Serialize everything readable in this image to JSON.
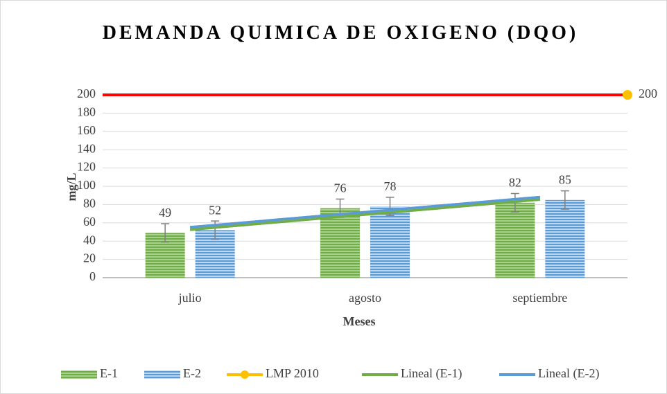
{
  "chart_data": {
    "type": "bar",
    "title": "DEMANDA QUIMICA DE OXIGENO (DQO)",
    "x_label": "Meses",
    "y_label": "mg/L",
    "categories": [
      "julio",
      "agosto",
      "septiembre"
    ],
    "series": [
      {
        "name": "E-1",
        "type": "bar",
        "color": "#70ad47",
        "values": [
          49,
          76,
          82
        ],
        "errors": [
          10,
          10,
          10
        ]
      },
      {
        "name": "E-2",
        "type": "bar",
        "color": "#5b9bd5",
        "values": [
          52,
          78,
          85
        ],
        "errors": [
          10,
          10,
          10
        ]
      },
      {
        "name": "LMP 2010",
        "type": "limit",
        "color": "#ffc000",
        "line_color": "#ff0000",
        "values": [
          200,
          200,
          200
        ]
      },
      {
        "name": "Lineal (E-1)",
        "type": "trend",
        "color": "#70ad47",
        "values": [
          52.5,
          69,
          85.5
        ]
      },
      {
        "name": "Lineal (E-2)",
        "type": "trend",
        "color": "#5b9bd5",
        "values": [
          55.2,
          71.7,
          88.2
        ]
      }
    ],
    "ylim": [
      0,
      200
    ],
    "yticks": [
      0,
      20,
      40,
      60,
      80,
      100,
      120,
      140,
      160,
      180,
      200
    ],
    "grid": true,
    "legend": "bottom"
  }
}
